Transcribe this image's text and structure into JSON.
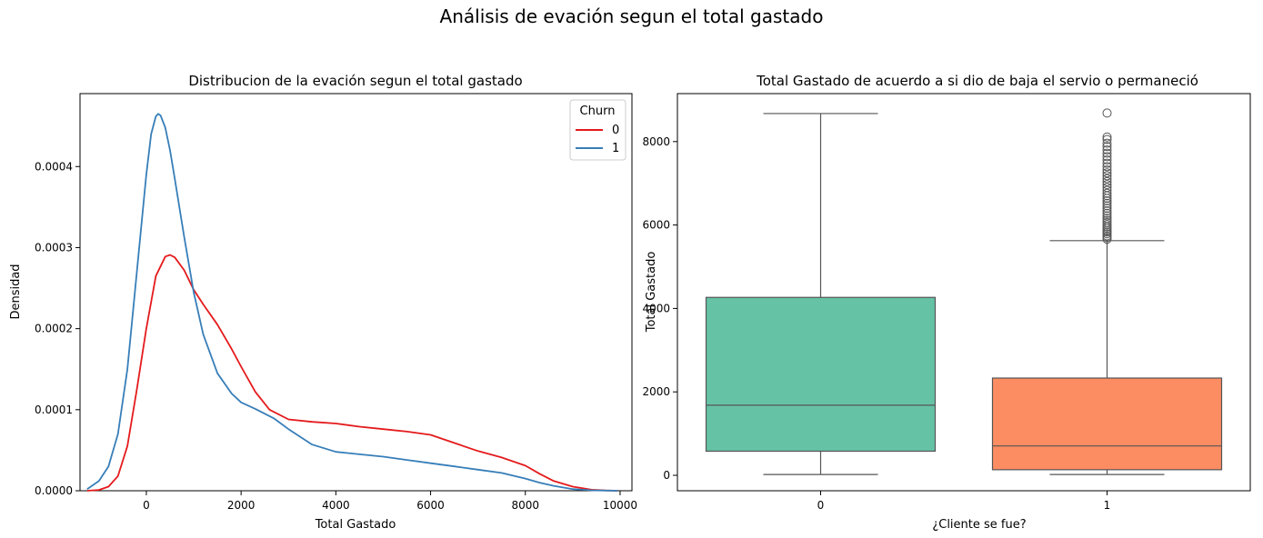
{
  "suptitle": "Análisis de evación segun el total gastado",
  "chart_data": [
    {
      "type": "line",
      "title": "Distribucion de la evación segun el total gastado",
      "xlabel": "Total Gastado",
      "ylabel": "Densidad",
      "xlim": [
        -1400,
        10250
      ],
      "ylim": [
        0,
        0.00049
      ],
      "xticks": [
        0,
        2000,
        4000,
        6000,
        8000,
        10000
      ],
      "xtick_labels": [
        "0",
        "2000",
        "4000",
        "6000",
        "8000",
        "10000"
      ],
      "yticks": [
        0,
        0.0001,
        0.0002,
        0.0003,
        0.0004
      ],
      "ytick_labels": [
        "0.0000",
        "0.0001",
        "0.0002",
        "0.0003",
        "0.0004"
      ],
      "legend": {
        "title": "Churn",
        "placement": "top-right"
      },
      "series": [
        {
          "name": "0",
          "color": "#e41a1c",
          "x": [
            -1250,
            -1000,
            -800,
            -600,
            -400,
            -200,
            0,
            200,
            400,
            500,
            600,
            800,
            1000,
            1200,
            1500,
            1800,
            2000,
            2300,
            2600,
            3000,
            3500,
            4000,
            4500,
            5000,
            5500,
            6000,
            6500,
            7000,
            7500,
            8000,
            8300,
            8600,
            9000,
            9400,
            9700,
            9950
          ],
          "y": [
            0,
            1e-06,
            5e-06,
            1.8e-05,
            5.5e-05,
            0.000125,
            0.0002,
            0.000265,
            0.000289,
            0.000291,
            0.000288,
            0.000272,
            0.000248,
            0.00023,
            0.000205,
            0.000175,
            0.000153,
            0.000122,
            0.0001,
            8.8e-05,
            8.5e-05,
            8.3e-05,
            7.9e-05,
            7.6e-05,
            7.3e-05,
            6.9e-05,
            5.9e-05,
            4.9e-05,
            4.1e-05,
            3.1e-05,
            2.1e-05,
            1.2e-05,
            5e-06,
            1.2e-06,
            3e-07,
            0
          ]
        },
        {
          "name": "1",
          "color": "#377eb8",
          "x": [
            -1250,
            -1000,
            -800,
            -600,
            -400,
            -200,
            0,
            100,
            200,
            250,
            300,
            400,
            500,
            600,
            800,
            1000,
            1200,
            1500,
            1800,
            2000,
            2300,
            2700,
            3000,
            3500,
            4000,
            4500,
            5000,
            5500,
            6000,
            6500,
            7000,
            7500,
            8000,
            8300,
            8600,
            9000,
            9400,
            9700,
            9950
          ],
          "y": [
            2e-06,
            1.2e-05,
            3e-05,
            7e-05,
            0.00015,
            0.00027,
            0.00039,
            0.00044,
            0.000462,
            0.000465,
            0.000463,
            0.000448,
            0.00042,
            0.000385,
            0.000313,
            0.000245,
            0.000193,
            0.000145,
            0.00012,
            0.000109,
            0.000101,
            8.9e-05,
            7.6e-05,
            5.7e-05,
            4.8e-05,
            4.5e-05,
            4.2e-05,
            3.8e-05,
            3.4e-05,
            3e-05,
            2.6e-05,
            2.2e-05,
            1.5e-05,
            1e-05,
            6e-06,
            2e-06,
            6e-07,
            2e-07,
            0
          ]
        }
      ]
    },
    {
      "type": "box",
      "title": "Total Gastado de acuerdo a si dio de baja el servio o permaneció",
      "xlabel": "¿Cliente se fue?",
      "ylabel": "Total Gastado",
      "categories": [
        "0",
        "1"
      ],
      "ylim": [
        -370,
        9150
      ],
      "yticks": [
        0,
        2000,
        4000,
        6000,
        8000
      ],
      "ytick_labels": [
        "0",
        "2000",
        "4000",
        "6000",
        "8000"
      ],
      "boxes": [
        {
          "category": "0",
          "color": "#66c2a5",
          "whisker_low": 19,
          "q1": 578,
          "median": 1680,
          "q3": 4265,
          "whisker_high": 8672,
          "outliers": []
        },
        {
          "category": "1",
          "color": "#fc8d62",
          "whisker_low": 19,
          "q1": 134,
          "median": 704,
          "q3": 2331,
          "whisker_high": 5625,
          "outliers": [
            5660,
            5700,
            5740,
            5790,
            5830,
            5870,
            5920,
            5960,
            6010,
            6060,
            6110,
            6160,
            6220,
            6280,
            6340,
            6400,
            6460,
            6520,
            6580,
            6640,
            6700,
            6760,
            6830,
            6900,
            6970,
            7040,
            7110,
            7180,
            7250,
            7320,
            7400,
            7480,
            7560,
            7640,
            7720,
            7800,
            7880,
            7960,
            8050,
            8110,
            8684
          ]
        }
      ]
    }
  ]
}
